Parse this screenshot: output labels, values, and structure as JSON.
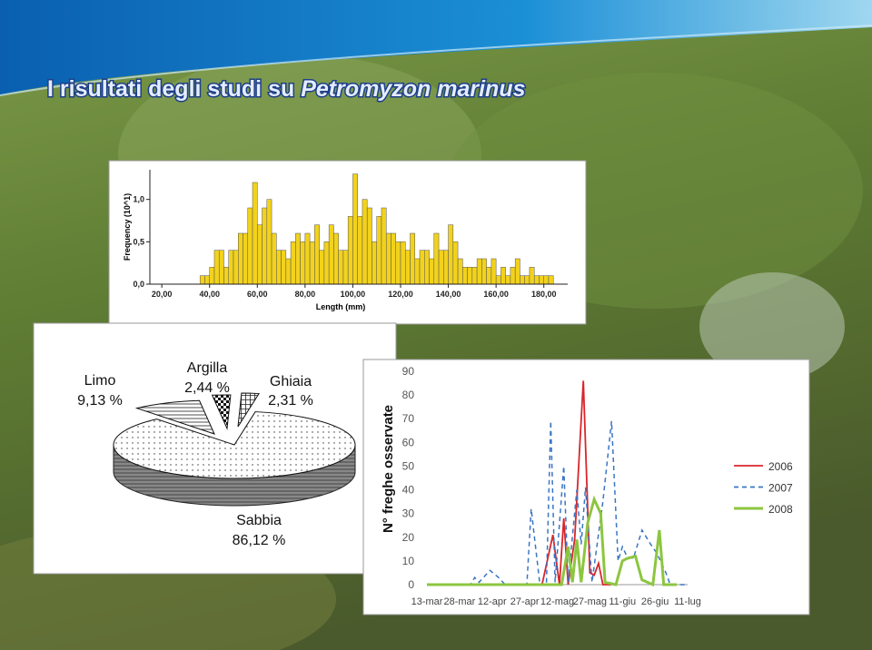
{
  "slide_title": {
    "text": "I risultati degli studi su",
    "species": "Petromyzon marinus"
  },
  "chart_data": [
    {
      "type": "histogram",
      "y_label": "Frequency (10^1)",
      "x_label": "Length (mm)",
      "color": "#f2d21c",
      "bins": [
        36,
        38,
        40,
        42,
        44,
        46,
        48,
        50,
        52,
        54,
        56,
        58,
        60,
        62,
        64,
        66,
        68,
        70,
        72,
        74,
        76,
        78,
        80,
        82,
        84,
        86,
        88,
        90,
        92,
        94,
        96,
        98,
        100,
        102,
        104,
        106,
        108,
        110,
        112,
        114,
        116,
        118,
        120,
        122,
        124,
        126,
        128,
        130,
        132,
        134,
        136,
        138,
        140,
        142,
        144,
        146,
        148,
        150,
        152,
        154,
        156,
        158,
        160,
        162,
        164,
        166,
        168,
        170,
        172,
        174,
        176,
        178,
        180,
        182,
        184
      ],
      "values": [
        0.1,
        0.1,
        0.2,
        0.4,
        0.4,
        0.2,
        0.4,
        0.4,
        0.6,
        0.6,
        0.9,
        1.2,
        0.7,
        0.9,
        1.0,
        0.6,
        0.4,
        0.4,
        0.3,
        0.5,
        0.6,
        0.5,
        0.6,
        0.5,
        0.7,
        0.4,
        0.5,
        0.7,
        0.6,
        0.4,
        0.4,
        0.8,
        1.3,
        0.8,
        1.0,
        0.9,
        0.5,
        0.8,
        0.9,
        0.6,
        0.6,
        0.5,
        0.5,
        0.4,
        0.6,
        0.3,
        0.4,
        0.4,
        0.3,
        0.6,
        0.4,
        0.4,
        0.7,
        0.5,
        0.3,
        0.2,
        0.2,
        0.2,
        0.3,
        0.3,
        0.2,
        0.3,
        0.1,
        0.2,
        0.1,
        0.2,
        0.3,
        0.1,
        0.1,
        0.2,
        0.1,
        0.1,
        0.1,
        0.1
      ],
      "xlim": [
        15,
        190
      ],
      "xticks": [
        {
          "value": 20,
          "label": "20,00"
        },
        {
          "value": 40,
          "label": "40,00"
        },
        {
          "value": 60,
          "label": "60,00"
        },
        {
          "value": 80,
          "label": "80,00"
        },
        {
          "value": 100,
          "label": "100,00"
        },
        {
          "value": 120,
          "label": "120,00"
        },
        {
          "value": 140,
          "label": "140,00"
        },
        {
          "value": 160,
          "label": "160,00"
        },
        {
          "value": 180,
          "label": "180,00"
        }
      ],
      "ylim": [
        0,
        1.35
      ],
      "yticks": [
        {
          "value": 0,
          "label": "0,0"
        },
        {
          "value": 0.5,
          "label": "0,5"
        },
        {
          "value": 1,
          "label": "1,0"
        }
      ]
    },
    {
      "type": "pie",
      "categories": [
        "Sabbia",
        "Limo",
        "Argilla",
        "Ghiaia"
      ],
      "values": [
        86.12,
        9.13,
        2.44,
        2.31
      ],
      "value_labels": [
        "86,12 %",
        "9,13 %",
        "2,44 %",
        "2,31 %"
      ]
    },
    {
      "type": "line",
      "y_label": "N° freghe osservate",
      "legend": "right",
      "xlim": [
        0,
        120
      ],
      "xticks": [
        {
          "value": 0,
          "label": "13-mar"
        },
        {
          "value": 15,
          "label": "28-mar"
        },
        {
          "value": 30,
          "label": "12-apr"
        },
        {
          "value": 45,
          "label": "27-apr"
        },
        {
          "value": 60,
          "label": "12-mag"
        },
        {
          "value": 75,
          "label": "27-mag"
        },
        {
          "value": 90,
          "label": "11-giu"
        },
        {
          "value": 105,
          "label": "26-giu"
        },
        {
          "value": 120,
          "label": "11-lug"
        }
      ],
      "ylim": [
        0,
        90
      ],
      "yticks": [
        0,
        10,
        20,
        30,
        40,
        50,
        60,
        70,
        80,
        90
      ],
      "series": [
        {
          "name": "2006",
          "color": "#d9262b",
          "dashed": false,
          "x": [
            0,
            53,
            58,
            61,
            63,
            65,
            68,
            72,
            75,
            77,
            79,
            81,
            85
          ],
          "values": [
            0,
            0,
            21,
            0,
            28,
            0,
            19,
            86,
            5,
            4,
            9,
            0,
            0
          ]
        },
        {
          "name": "2007",
          "color": "#3a75c4",
          "dashed": true,
          "x": [
            0,
            20,
            22,
            24,
            29,
            33,
            36,
            46,
            48,
            52,
            55,
            57,
            59,
            63,
            65,
            69,
            71,
            73,
            76,
            81,
            85,
            88,
            90,
            92,
            95,
            99,
            103,
            106,
            110,
            112,
            120
          ],
          "values": [
            0,
            0,
            3,
            1,
            6,
            3,
            0,
            0,
            32,
            0,
            0,
            69,
            1,
            50,
            1,
            40,
            17,
            41,
            1,
            35,
            69,
            10,
            16,
            12,
            11,
            23,
            17,
            13,
            5,
            0,
            0
          ]
        },
        {
          "name": "2008",
          "color": "#8cc63f",
          "dashed": false,
          "x": [
            0,
            62,
            65,
            67,
            69,
            71,
            74,
            77,
            80,
            82,
            87,
            90,
            92,
            96,
            99,
            104,
            107,
            109,
            115
          ],
          "values": [
            0,
            0,
            16,
            1,
            19,
            1,
            26,
            36,
            30,
            1,
            0,
            10,
            11,
            12,
            2,
            0,
            23,
            0,
            0
          ]
        }
      ]
    }
  ]
}
